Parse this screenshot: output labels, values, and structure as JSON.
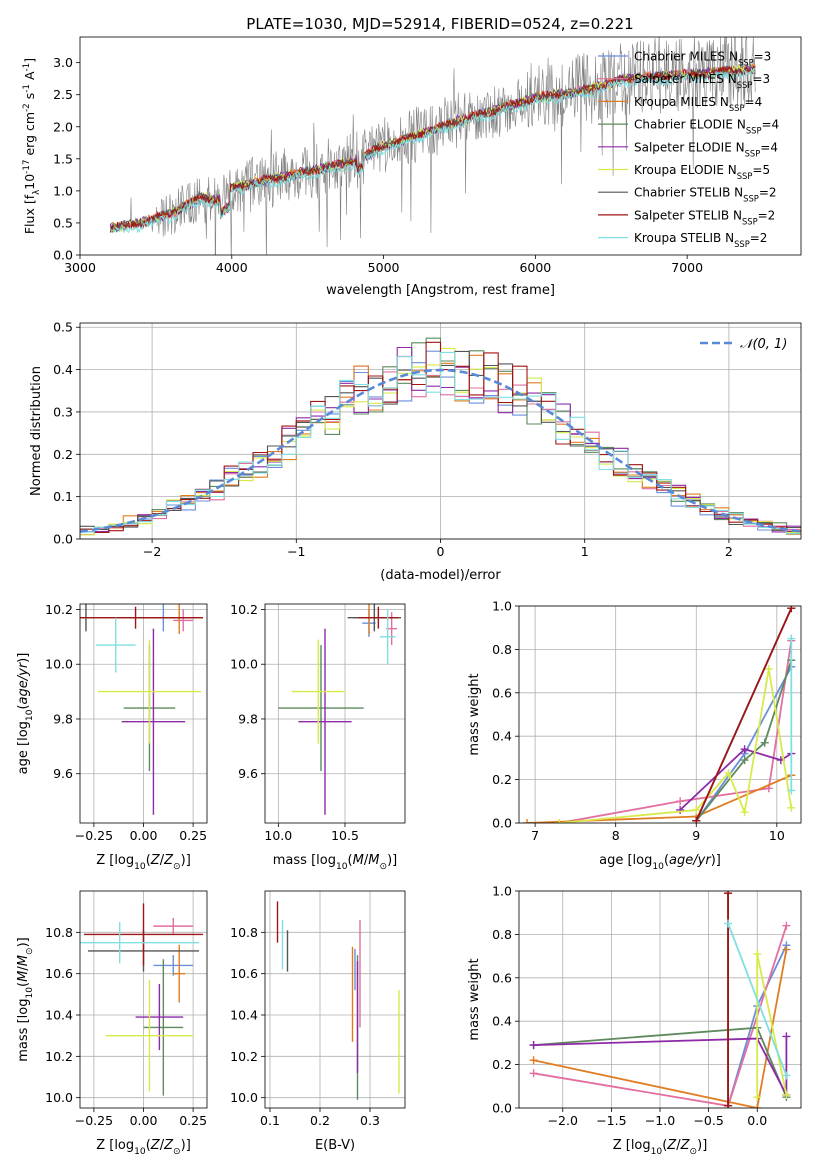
{
  "title": "PLATE=1030, MJD=52914, FIBERID=0524, z=0.221",
  "colors": {
    "Chabrier MILES": "#6b8fdc",
    "Salpeter MILES": "#e26fa0",
    "Kroupa MILES": "#e07d22",
    "Chabrier ELODIE": "#5e8a5e",
    "Salpeter ELODIE": "#8e2aa8",
    "Kroupa ELODIE": "#d8ea4a",
    "Chabrier STELIB": "#555555",
    "Salpeter STELIB": "#a01515",
    "Kroupa STELIB": "#80dfe0",
    "data": "#808080",
    "gauss": "#5a8ad6"
  },
  "chart_data": [
    {
      "id": "spectrum",
      "type": "line",
      "xlabel": "wavelength [Angstrom, rest frame]",
      "ylabel": "Flux [f",
      "ylabel_sub": "λ",
      "ylabel_unit": "10",
      "ylabel_exp": "-17",
      "ylabel_tail": " erg cm",
      "ylabel_exp2": "-2",
      "ylabel_tail2": " s",
      "ylabel_exp3": "-1",
      "ylabel_tail3": " A",
      "ylabel_exp4": "-1",
      "ylabel_end": "]",
      "xlim": [
        3000,
        7750
      ],
      "ylim": [
        0,
        3.4
      ],
      "xticks": [
        3000,
        4000,
        5000,
        6000,
        7000
      ],
      "yticks": [
        0.0,
        0.5,
        1.0,
        1.5,
        2.0,
        2.5,
        3.0
      ],
      "legend": [
        {
          "name": "Chabrier MILES",
          "nssp": "N",
          "sub": "SSP",
          "val": "=3"
        },
        {
          "name": "Salpeter MILES",
          "nssp": "N",
          "sub": "SSP",
          "val": "=3"
        },
        {
          "name": "Kroupa MILES",
          "nssp": "N",
          "sub": "SSP",
          "val": "=4"
        },
        {
          "name": "Chabrier ELODIE",
          "nssp": "N",
          "sub": "SSP",
          "val": "=4"
        },
        {
          "name": "Salpeter ELODIE",
          "nssp": "N",
          "sub": "SSP",
          "val": "=4"
        },
        {
          "name": "Kroupa ELODIE",
          "nssp": "N",
          "sub": "SSP",
          "val": "=5"
        },
        {
          "name": "Chabrier STELIB",
          "nssp": "N",
          "sub": "SSP",
          "val": "=2"
        },
        {
          "name": "Salpeter STELIB",
          "nssp": "N",
          "sub": "SSP",
          "val": "=2"
        },
        {
          "name": "Kroupa STELIB",
          "nssp": "N",
          "sub": "SSP",
          "val": "=2"
        }
      ],
      "model_continuum": [
        [
          3200,
          0.42
        ],
        [
          3400,
          0.5
        ],
        [
          3600,
          0.65
        ],
        [
          3800,
          0.9
        ],
        [
          3900,
          0.85
        ],
        [
          4000,
          1.05
        ],
        [
          4200,
          1.15
        ],
        [
          4500,
          1.3
        ],
        [
          4800,
          1.45
        ],
        [
          5000,
          1.7
        ],
        [
          5200,
          1.85
        ],
        [
          5500,
          2.1
        ],
        [
          5800,
          2.3
        ],
        [
          6000,
          2.45
        ],
        [
          6300,
          2.55
        ],
        [
          6600,
          2.75
        ],
        [
          6900,
          2.8
        ],
        [
          7200,
          2.85
        ],
        [
          7450,
          2.9
        ]
      ]
    },
    {
      "id": "residuals",
      "type": "histogram",
      "xlabel": "(data-model)/error",
      "ylabel": "Normed distribution",
      "xlim": [
        -2.5,
        2.5
      ],
      "ylim": [
        0,
        0.51
      ],
      "xticks": [
        -2,
        -1,
        0,
        1,
        2
      ],
      "xtick_labels": [
        "−2",
        "−1",
        "0",
        "1",
        "2"
      ],
      "yticks": [
        0.0,
        0.1,
        0.2,
        0.3,
        0.4,
        0.5
      ],
      "bin_width": 0.1,
      "legend": "𝒩(0, 1)"
    },
    {
      "id": "age-Z",
      "type": "errorbar",
      "xlabel": "Z [log10(Z/Z⊙)]",
      "ylabel": "age  [log10(age/yr)]",
      "xlim": [
        -0.32,
        0.32
      ],
      "ylim": [
        9.42,
        10.22
      ],
      "xticks": [
        -0.25,
        0.0,
        0.25
      ],
      "xtick_labels": [
        "−0.25",
        "0.00",
        "0.25"
      ],
      "yticks": [
        9.6,
        9.8,
        10.0,
        10.2
      ],
      "points": [
        {
          "series": "Chabrier MILES",
          "x": 0.1,
          "xe": 0.12,
          "y": 10.17,
          "ye": 0.05
        },
        {
          "series": "Salpeter MILES",
          "x": 0.2,
          "xe": 0.05,
          "y": 10.16,
          "ye": 0.04
        },
        {
          "series": "Kroupa MILES",
          "x": 0.18,
          "xe": 0.12,
          "y": 10.17,
          "ye": 0.06
        },
        {
          "series": "Chabrier ELODIE",
          "x": 0.03,
          "xe": 0.13,
          "y": 9.84,
          "ye": 0.23
        },
        {
          "series": "Salpeter ELODIE",
          "x": 0.05,
          "xe": 0.16,
          "y": 9.79,
          "ye": 0.34
        },
        {
          "series": "Kroupa ELODIE",
          "x": 0.03,
          "xe": 0.26,
          "y": 9.9,
          "ye": 0.19
        },
        {
          "series": "Chabrier STELIB",
          "x": -0.29,
          "xe": 0.55,
          "y": 10.17,
          "ye": 0.05
        },
        {
          "series": "Salpeter STELIB",
          "x": -0.04,
          "xe": 0.34,
          "y": 10.17,
          "ye": 0.04
        },
        {
          "series": "Kroupa STELIB",
          "x": -0.14,
          "xe": 0.1,
          "y": 10.07,
          "ye": 0.1
        }
      ]
    },
    {
      "id": "age-mass",
      "type": "errorbar",
      "xlabel": "mass [log10(M/M⊙)]",
      "xlim": [
        9.9,
        10.95
      ],
      "ylim": [
        9.42,
        10.22
      ],
      "xticks": [
        10.0,
        10.5
      ],
      "xtick_labels": [
        "10.0",
        "10.5"
      ],
      "yticks": [
        9.6,
        9.8,
        10.0,
        10.2
      ],
      "points": [
        {
          "series": "Chabrier MILES",
          "x": 10.68,
          "xe": 0.05,
          "y": 10.15,
          "ye": 0.05
        },
        {
          "series": "Salpeter MILES",
          "x": 10.85,
          "xe": 0.04,
          "y": 10.13,
          "ye": 0.06
        },
        {
          "series": "Kroupa MILES",
          "x": 10.68,
          "xe": 0.12,
          "y": 10.17,
          "ye": 0.06
        },
        {
          "series": "Chabrier ELODIE",
          "x": 10.32,
          "xe": 0.32,
          "y": 9.84,
          "ye": 0.23
        },
        {
          "series": "Salpeter ELODIE",
          "x": 10.35,
          "xe": 0.2,
          "y": 9.79,
          "ye": 0.34
        },
        {
          "series": "Kroupa ELODIE",
          "x": 10.3,
          "xe": 0.2,
          "y": 9.9,
          "ye": 0.19
        },
        {
          "series": "Chabrier STELIB",
          "x": 10.72,
          "xe": 0.2,
          "y": 10.17,
          "ye": 0.05
        },
        {
          "series": "Salpeter STELIB",
          "x": 10.75,
          "xe": 0.15,
          "y": 10.17,
          "ye": 0.04
        },
        {
          "series": "Kroupa STELIB",
          "x": 10.82,
          "xe": 0.06,
          "y": 10.1,
          "ye": 0.1
        }
      ]
    },
    {
      "id": "weight-age",
      "type": "line",
      "xlabel": "age  [log10(age/yr)]",
      "ylabel": "mass weight",
      "xlim": [
        6.8,
        10.3
      ],
      "ylim": [
        0,
        1.0
      ],
      "xticks": [
        7,
        8,
        9,
        10
      ],
      "yticks": [
        0.0,
        0.2,
        0.4,
        0.6,
        0.8,
        1.0
      ],
      "series": [
        {
          "name": "Chabrier MILES",
          "x": [
            9.0,
            9.6,
            10.18
          ],
          "y": [
            0.01,
            0.32,
            0.72
          ]
        },
        {
          "name": "Salpeter MILES",
          "x": [
            7.3,
            8.8,
            9.9,
            10.18
          ],
          "y": [
            0.0,
            0.1,
            0.16,
            0.84
          ]
        },
        {
          "name": "Kroupa MILES",
          "x": [
            6.9,
            9.0,
            10.18
          ],
          "y": [
            0.0,
            0.03,
            0.22
          ]
        },
        {
          "name": "Chabrier ELODIE",
          "x": [
            9.0,
            9.6,
            9.85,
            10.18
          ],
          "y": [
            0.01,
            0.29,
            0.37,
            0.75
          ]
        },
        {
          "name": "Salpeter ELODIE",
          "x": [
            8.8,
            9.6,
            10.05,
            10.18
          ],
          "y": [
            0.06,
            0.34,
            0.29,
            0.32
          ]
        },
        {
          "name": "Kroupa ELODIE",
          "x": [
            7.3,
            9.0,
            9.4,
            9.6,
            9.9,
            10.18
          ],
          "y": [
            0.0,
            0.06,
            0.23,
            0.05,
            0.71,
            0.07
          ]
        },
        {
          "name": "Chabrier STELIB",
          "x": [
            9.0,
            10.18
          ],
          "y": [
            0.01,
            0.99
          ]
        },
        {
          "name": "Salpeter STELIB",
          "x": [
            9.0,
            10.18
          ],
          "y": [
            0.01,
            0.99
          ]
        },
        {
          "name": "Kroupa STELIB",
          "x": [
            10.18,
            10.18
          ],
          "y": [
            0.15,
            0.85
          ]
        }
      ]
    },
    {
      "id": "mass-Z",
      "type": "errorbar",
      "xlabel": "Z [log10(Z/Z⊙)]",
      "ylabel": "mass [log10(M/M⊙)]",
      "xlim": [
        -0.32,
        0.32
      ],
      "ylim": [
        9.95,
        11.0
      ],
      "xticks": [
        -0.25,
        0.0,
        0.25
      ],
      "xtick_labels": [
        "−0.25",
        "0.00",
        "0.25"
      ],
      "yticks": [
        10.0,
        10.2,
        10.4,
        10.6,
        10.8
      ],
      "points": [
        {
          "series": "Chabrier MILES",
          "x": 0.15,
          "xe": 0.1,
          "y": 10.64,
          "ye": 0.05
        },
        {
          "series": "Salpeter MILES",
          "x": 0.15,
          "xe": 0.1,
          "y": 10.83,
          "ye": 0.04
        },
        {
          "series": "Kroupa MILES",
          "x": 0.18,
          "xe": 0.03,
          "y": 10.6,
          "ye": 0.14
        },
        {
          "series": "Chabrier ELODIE",
          "x": 0.1,
          "xe": 0.1,
          "y": 10.34,
          "ye": 0.33
        },
        {
          "series": "Salpeter ELODIE",
          "x": 0.08,
          "xe": 0.12,
          "y": 10.39,
          "ye": 0.16
        },
        {
          "series": "Kroupa ELODIE",
          "x": 0.03,
          "xe": 0.22,
          "y": 10.3,
          "ye": 0.27
        },
        {
          "series": "Chabrier STELIB",
          "x": -0.0,
          "xe": 0.28,
          "y": 10.71,
          "ye": 0.1
        },
        {
          "series": "Salpeter STELIB",
          "x": 0.0,
          "xe": 0.3,
          "y": 10.79,
          "ye": 0.15
        },
        {
          "series": "Kroupa STELIB",
          "x": -0.12,
          "xe": 0.4,
          "y": 10.75,
          "ye": 0.1
        }
      ]
    },
    {
      "id": "mass-ebv",
      "type": "errorbar",
      "xlabel": "E(B-V)",
      "xlim": [
        0.09,
        0.37
      ],
      "ylim": [
        9.95,
        11.0
      ],
      "xticks": [
        0.1,
        0.2,
        0.3
      ],
      "yticks": [
        10.0,
        10.2,
        10.4,
        10.6,
        10.8
      ],
      "points": [
        {
          "series": "Chabrier MILES",
          "x": 0.27,
          "xe": 0.0,
          "y": 10.62,
          "ye": 0.1
        },
        {
          "series": "Salpeter MILES",
          "x": 0.28,
          "xe": 0.0,
          "y": 10.6,
          "ye": 0.26
        },
        {
          "series": "Kroupa MILES",
          "x": 0.265,
          "xe": 0.0,
          "y": 10.5,
          "ye": 0.23
        },
        {
          "series": "Chabrier ELODIE",
          "x": 0.275,
          "xe": 0.0,
          "y": 10.34,
          "ye": 0.35
        },
        {
          "series": "Salpeter ELODIE",
          "x": 0.275,
          "xe": 0.0,
          "y": 10.39,
          "ye": 0.27
        },
        {
          "series": "Kroupa ELODIE",
          "x": 0.358,
          "xe": 0.0,
          "y": 10.27,
          "ye": 0.25
        },
        {
          "series": "Chabrier STELIB",
          "x": 0.135,
          "xe": 0.0,
          "y": 10.71,
          "ye": 0.1
        },
        {
          "series": "Salpeter STELIB",
          "x": 0.115,
          "xe": 0.0,
          "y": 10.85,
          "ye": 0.1
        },
        {
          "series": "Kroupa STELIB",
          "x": 0.125,
          "xe": 0.0,
          "y": 10.74,
          "ye": 0.12
        }
      ]
    },
    {
      "id": "weight-Z",
      "type": "line",
      "xlabel": "Z [log10(Z/Z⊙)]",
      "ylabel": "mass weight",
      "xlim": [
        -2.45,
        0.45
      ],
      "ylim": [
        0,
        1.0
      ],
      "xticks": [
        -2.0,
        -1.5,
        -1.0,
        -0.5,
        0.0
      ],
      "xtick_labels": [
        "−2.0",
        "−1.5",
        "−1.0",
        "−0.5",
        "0.0"
      ],
      "yticks": [
        0.0,
        0.2,
        0.4,
        0.6,
        0.8,
        1.0
      ],
      "series": [
        {
          "name": "Chabrier MILES",
          "x": [
            -0.3,
            0.0,
            0.3
          ],
          "y": [
            0.01,
            0.47,
            0.75
          ]
        },
        {
          "name": "Salpeter MILES",
          "x": [
            -2.3,
            -0.3,
            0.3
          ],
          "y": [
            0.16,
            0.01,
            0.84
          ]
        },
        {
          "name": "Kroupa MILES",
          "x": [
            -2.3,
            0.0,
            0.3
          ],
          "y": [
            0.22,
            0.0,
            0.73
          ]
        },
        {
          "name": "Chabrier ELODIE",
          "x": [
            -2.3,
            0.0,
            0.3
          ],
          "y": [
            0.29,
            0.37,
            0.05
          ]
        },
        {
          "name": "Salpeter ELODIE",
          "x": [
            -2.3,
            0.0,
            0.3,
            0.3
          ],
          "y": [
            0.29,
            0.32,
            0.06,
            0.33
          ]
        },
        {
          "name": "Kroupa ELODIE",
          "x": [
            0.0,
            0.0,
            0.3
          ],
          "y": [
            0.05,
            0.71,
            0.06
          ]
        },
        {
          "name": "Chabrier STELIB",
          "x": [
            -0.3,
            -0.3
          ],
          "y": [
            0.01,
            0.99
          ]
        },
        {
          "name": "Salpeter STELIB",
          "x": [
            -0.3,
            -0.3
          ],
          "y": [
            0.01,
            0.99
          ]
        },
        {
          "name": "Kroupa STELIB",
          "x": [
            -0.3,
            0.3
          ],
          "y": [
            0.85,
            0.15
          ]
        }
      ]
    }
  ]
}
